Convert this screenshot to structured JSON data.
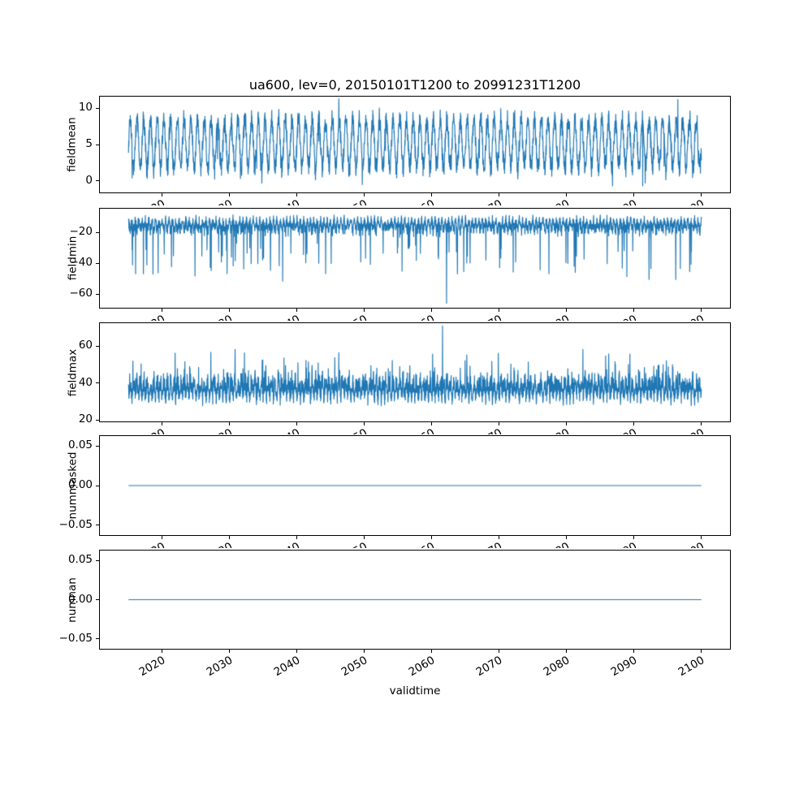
{
  "title": "ua600, lev=0, 20150101T1200 to 20991231T1200",
  "axes": {
    "xlabel": "validtime",
    "xticks": [
      2020,
      2030,
      2040,
      2050,
      2060,
      2070,
      2080,
      2090,
      2100
    ],
    "xlim": [
      2010.75,
      2104.25
    ],
    "x_data_range": [
      2015.0,
      2100.0
    ],
    "line_color": "#1f77b4",
    "tick_label_rotation_deg": 30,
    "grid": false,
    "legend": "none"
  },
  "chart_data": [
    {
      "type": "line",
      "ylabel": "fieldmean",
      "yticks": [
        0,
        5,
        10
      ],
      "ydecimals": 0,
      "ylim": [
        -1.6,
        11.6
      ],
      "signal": {
        "baseline": 5.1,
        "seasonal_amplitude": 3.3,
        "noise": 1.8,
        "fold": 0,
        "spike_prob": 0.004,
        "spike_amp": -4,
        "clip_min": -0.7,
        "clip_max": 11.3,
        "events": [
          {
            "x": 2091.3,
            "y": -0.7
          },
          {
            "x": 2046.2,
            "y": 11.3
          },
          {
            "x": 2096.5,
            "y": 11.2
          }
        ]
      }
    },
    {
      "type": "line",
      "ylabel": "fieldmin",
      "yticks": [
        -20,
        -40,
        -60
      ],
      "ydecimals": 0,
      "ylim": [
        -68.9,
        -4.6
      ],
      "signal": {
        "baseline": -8.5,
        "seasonal_amplitude": 6,
        "noise": 9,
        "fold": -1,
        "spike_prob": 0.035,
        "spike_amp": -32,
        "clip_min": -66,
        "clip_max": -7.5,
        "events": [
          {
            "x": 2062.2,
            "y": -66
          }
        ]
      }
    },
    {
      "type": "line",
      "ylabel": "fieldmax",
      "yticks": [
        20,
        40,
        60
      ],
      "ydecimals": 0,
      "ylim": [
        19.3,
        72.5
      ],
      "signal": {
        "baseline": 27.5,
        "seasonal_amplitude": 8,
        "noise": 13,
        "fold": 1,
        "spike_prob": 0.03,
        "spike_amp": 16,
        "clip_min": 26,
        "clip_max": 71,
        "events": [
          {
            "x": 2061.6,
            "y": 71
          }
        ]
      }
    },
    {
      "type": "line",
      "ylabel": "nummasked",
      "yticks": [
        -0.05,
        0,
        0.05
      ],
      "ydecimals": 2,
      "ylim": [
        -0.0625,
        0.0625
      ],
      "signal": {
        "baseline": 0,
        "seasonal_amplitude": 0,
        "noise": 0,
        "fold": 0,
        "spike_prob": 0,
        "spike_amp": 0,
        "clip_min": -0.01,
        "clip_max": 0.01,
        "events": []
      }
    },
    {
      "type": "line",
      "ylabel": "numnan",
      "yticks": [
        -0.05,
        0,
        0.05
      ],
      "ydecimals": 2,
      "ylim": [
        -0.0625,
        0.0625
      ],
      "signal": {
        "baseline": 0,
        "seasonal_amplitude": 0,
        "noise": 0,
        "fold": 0,
        "spike_prob": 0,
        "spike_amp": 0,
        "clip_min": -0.01,
        "clip_max": 0.01,
        "events": []
      }
    }
  ]
}
